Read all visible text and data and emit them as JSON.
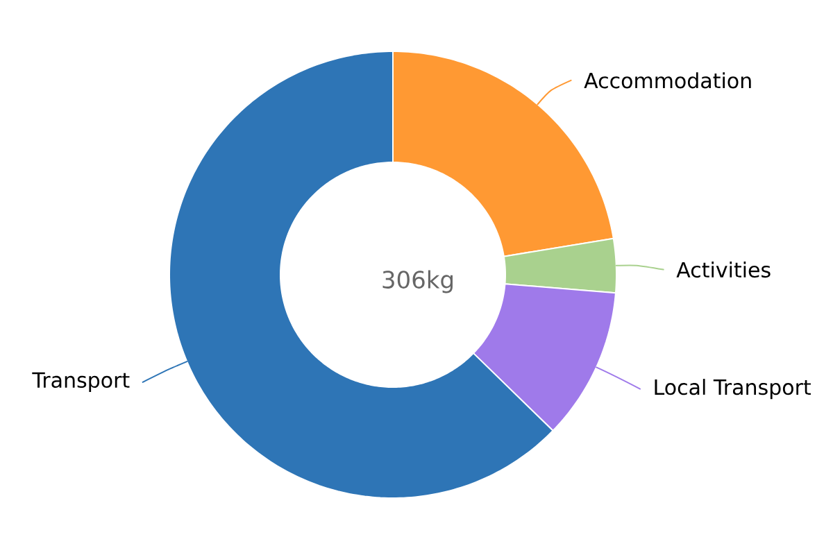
{
  "chart_data": {
    "type": "donut",
    "title": "306kg",
    "categories": [
      "Accommodation",
      "Activities",
      "Local Transport",
      "Transport"
    ],
    "values": [
      22.4,
      3.9,
      11.0,
      62.7
    ],
    "colors": [
      "#ff9933",
      "#a9d18e",
      "#9f7aea",
      "#2e75b6"
    ]
  }
}
